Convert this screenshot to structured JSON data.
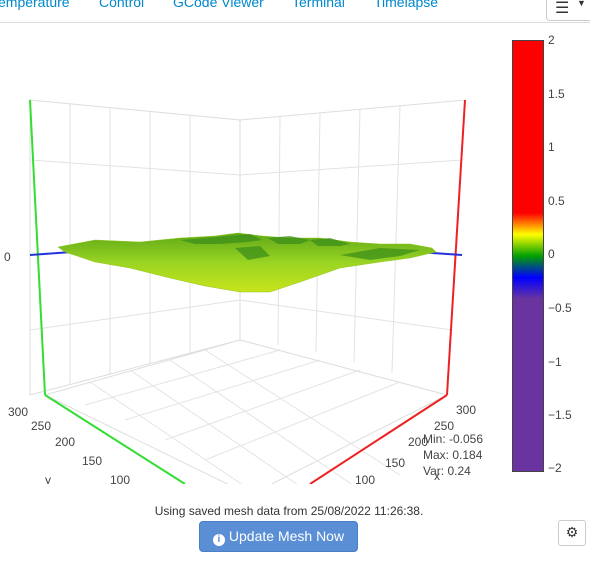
{
  "tabs": [
    {
      "label": "emperature"
    },
    {
      "label": "Control"
    },
    {
      "label": "GCode Viewer"
    },
    {
      "label": "Terminal"
    },
    {
      "label": "Timelapse"
    }
  ],
  "menu": {
    "icon": "hamburger-icon"
  },
  "chart_data": {
    "type": "surface",
    "z_axis_ticks": [
      "0"
    ],
    "y_axis_ticks": [
      "300",
      "250",
      "200",
      "150",
      "100"
    ],
    "x_axis_ticks": [
      "300",
      "250",
      "200",
      "150",
      "100"
    ],
    "y_axis_label": "y",
    "x_axis_label": "x",
    "colorscale": [
      [
        "#ff0000",
        "2"
      ],
      [
        "#ffff00",
        "0.5"
      ],
      [
        "#00a000",
        "0"
      ],
      [
        "#0000ff",
        "-0.25"
      ],
      [
        "#6a34a0",
        "-2"
      ]
    ],
    "colorbar_ticks": [
      "2",
      "1.5",
      "1",
      "0.5",
      "0",
      "−0.5",
      "−1",
      "−1.5",
      "−2"
    ],
    "zlim": [
      -2,
      2
    ]
  },
  "mesh_info": {
    "min": "Min: -0.056",
    "max": "Max: 0.184",
    "var": "Var: 0.24"
  },
  "footer": {
    "status_text": "Using saved mesh data from 25/08/2022 11:26:38.",
    "update_label": "Update Mesh Now"
  },
  "settings": {
    "icon": "gear-icon"
  }
}
